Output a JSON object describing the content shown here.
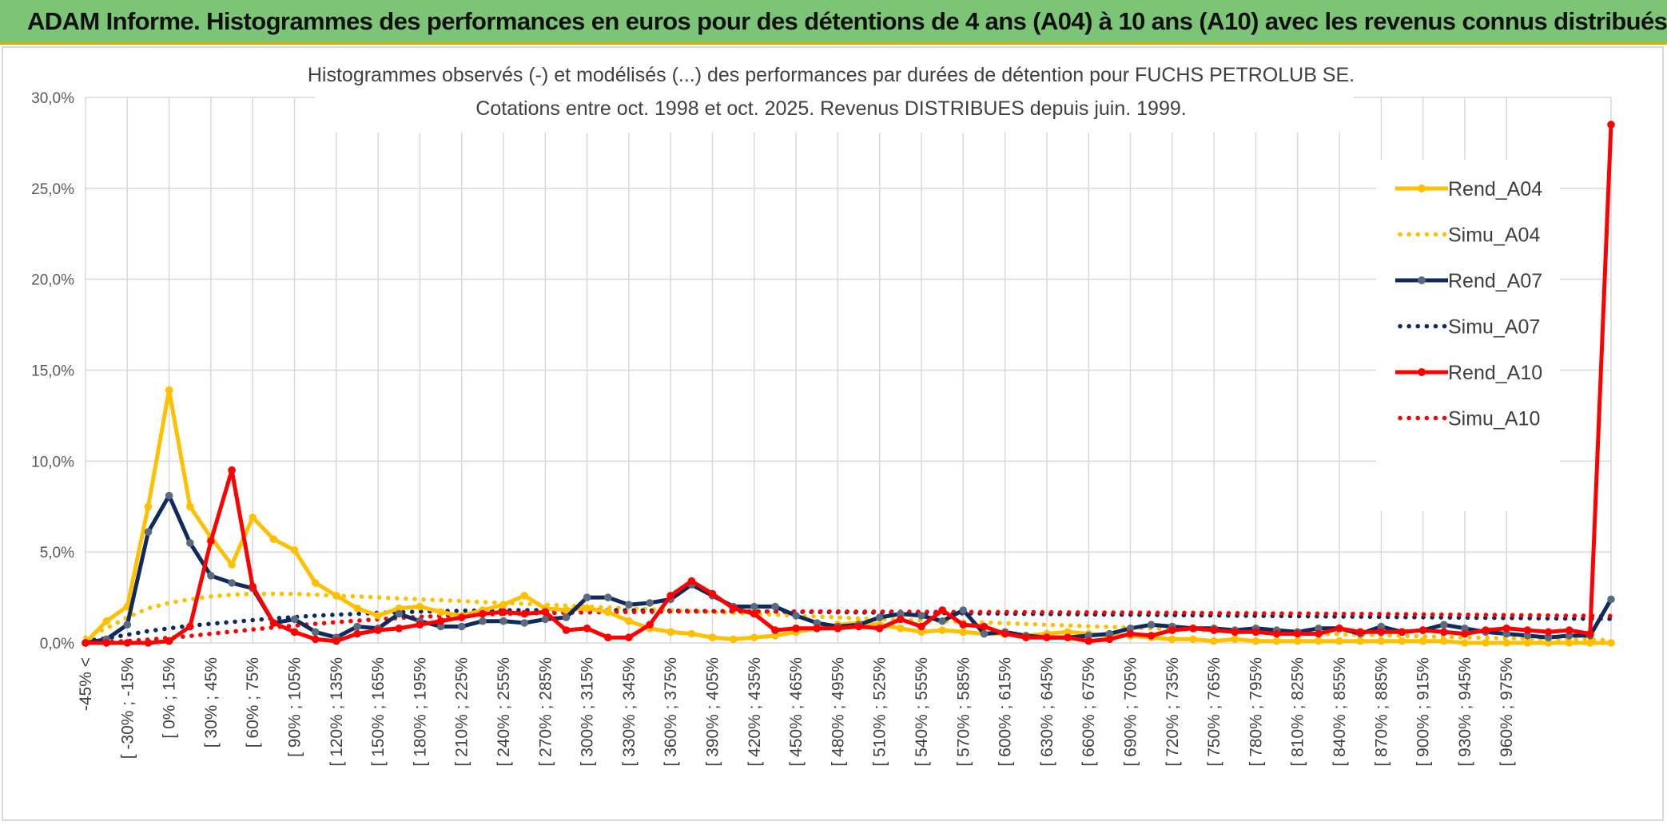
{
  "banner": {
    "title": "ADAM Informe. Histogrammes des performances en euros pour des détentions de 4 ans (A04) à 10 ans (A10) avec les revenus connus distribués"
  },
  "colors": {
    "banner_bg": "#7cc576",
    "a04": "#ffc000",
    "a07": "#0f2a5c",
    "a10": "#ff0000",
    "grid": "#d9d9d9"
  },
  "chart_data": {
    "type": "line",
    "title": "Histogrammes observés (-) et modélisés (...) des performances par durées de détention pour FUCHS PETROLUB SE.",
    "subtitle": "Cotations entre oct. 1998 et oct. 2025. Revenus DISTRIBUES depuis juin. 1999.",
    "xlabel": "",
    "ylabel": "",
    "ylim": [
      0,
      30
    ],
    "y_ticks": [
      "0,0%",
      "5,0%",
      "10,0%",
      "15,0%",
      "20,0%",
      "25,0%",
      "30,0%"
    ],
    "legend_position": "right",
    "tick_labels": [
      "-45% <",
      "[ -30% ; -15%",
      "[ 0% ; 15%",
      "[ 30% ; 45%",
      "[ 60% ; 75%",
      "[ 90% ; 105%",
      "[ 120% ; 135%",
      "[ 150% ; 165%",
      "[ 180% ; 195%",
      "[ 210% ; 225%",
      "[ 240% ; 255%",
      "[ 270% ; 285%",
      "[ 300% ; 315%",
      "[ 330% ; 345%",
      "[ 360% ; 375%",
      "[ 390% ; 405%",
      "[ 420% ; 435%",
      "[ 450% ; 465%",
      "[ 480% ; 495%",
      "[ 510% ; 525%",
      "[ 540% ; 555%",
      "[ 570% ; 585%",
      "[ 600% ; 615%",
      "[ 630% ; 645%",
      "[ 660% ; 675%",
      "[ 690% ; 705%",
      "[ 720% ; 735%",
      "[ 750% ; 765%",
      "[ 780% ; 795%",
      "[ 810% ; 825%",
      "[ 840% ; 855%",
      "[ 870% ; 885%",
      "[ 900% ; 915%",
      "[ 930% ; 945%",
      "[ 960% ; 975%"
    ],
    "series": [
      {
        "name": "Rend_A04",
        "style": "solid",
        "color": "#ffc000",
        "values": [
          0.0,
          1.2,
          2.0,
          7.5,
          13.9,
          7.5,
          5.8,
          4.3,
          6.9,
          5.7,
          5.1,
          3.3,
          2.6,
          1.9,
          1.5,
          1.9,
          2.0,
          1.7,
          1.5,
          1.8,
          2.1,
          2.6,
          1.9,
          1.8,
          1.9,
          1.7,
          1.2,
          0.8,
          0.6,
          0.5,
          0.3,
          0.2,
          0.3,
          0.4,
          0.6,
          0.8,
          1.0,
          1.1,
          1.0,
          0.8,
          0.6,
          0.7,
          0.6,
          0.5,
          0.5,
          0.4,
          0.5,
          0.6,
          0.5,
          0.4,
          0.4,
          0.3,
          0.2,
          0.2,
          0.1,
          0.2,
          0.1,
          0.1,
          0.1,
          0.1,
          0.1,
          0.1,
          0.1,
          0.1,
          0.1,
          0.1,
          0.0,
          0.0,
          0.0,
          0.0,
          0.0,
          0.0,
          0.0,
          0.0
        ]
      },
      {
        "name": "Simu_A04",
        "style": "dotted",
        "color": "#ffc000",
        "values": [
          0.3,
          0.8,
          1.4,
          1.9,
          2.2,
          2.4,
          2.55,
          2.65,
          2.7,
          2.7,
          2.7,
          2.65,
          2.6,
          2.55,
          2.5,
          2.45,
          2.4,
          2.35,
          2.3,
          2.25,
          2.2,
          2.15,
          2.1,
          2.05,
          2.0,
          1.95,
          1.9,
          1.85,
          1.8,
          1.75,
          1.7,
          1.65,
          1.6,
          1.55,
          1.5,
          1.45,
          1.4,
          1.35,
          1.3,
          1.27,
          1.24,
          1.2,
          1.16,
          1.12,
          1.08,
          1.04,
          1.0,
          0.96,
          0.92,
          0.88,
          0.84,
          0.8,
          0.76,
          0.72,
          0.68,
          0.64,
          0.6,
          0.57,
          0.54,
          0.51,
          0.48,
          0.45,
          0.42,
          0.39,
          0.36,
          0.33,
          0.3,
          0.28,
          0.26,
          0.24,
          0.22,
          0.2,
          0.18,
          0.15
        ]
      },
      {
        "name": "Rend_A07",
        "style": "solid",
        "color": "#0f2a5c",
        "values": [
          0.0,
          0.2,
          1.0,
          6.1,
          8.1,
          5.5,
          3.7,
          3.3,
          3.0,
          1.1,
          1.3,
          0.6,
          0.3,
          0.9,
          0.8,
          1.6,
          1.2,
          0.9,
          0.9,
          1.2,
          1.2,
          1.1,
          1.3,
          1.4,
          2.5,
          2.5,
          2.1,
          2.2,
          2.4,
          3.2,
          2.6,
          2.0,
          2.0,
          2.0,
          1.5,
          1.1,
          0.9,
          1.0,
          1.4,
          1.6,
          1.5,
          1.2,
          1.8,
          0.5,
          0.6,
          0.4,
          0.3,
          0.3,
          0.4,
          0.5,
          0.8,
          1.0,
          0.9,
          0.8,
          0.8,
          0.7,
          0.8,
          0.7,
          0.6,
          0.8,
          0.8,
          0.5,
          0.9,
          0.6,
          0.7,
          1.0,
          0.8,
          0.6,
          0.5,
          0.4,
          0.3,
          0.4,
          0.4,
          2.4
        ]
      },
      {
        "name": "Simu_A07",
        "style": "dotted",
        "color": "#0f2a5c",
        "values": [
          0.1,
          0.25,
          0.45,
          0.65,
          0.8,
          0.95,
          1.05,
          1.15,
          1.25,
          1.35,
          1.42,
          1.5,
          1.55,
          1.6,
          1.65,
          1.68,
          1.72,
          1.75,
          1.77,
          1.78,
          1.79,
          1.8,
          1.8,
          1.8,
          1.8,
          1.8,
          1.79,
          1.78,
          1.77,
          1.76,
          1.75,
          1.74,
          1.73,
          1.72,
          1.71,
          1.7,
          1.69,
          1.68,
          1.67,
          1.66,
          1.65,
          1.64,
          1.63,
          1.62,
          1.61,
          1.6,
          1.59,
          1.58,
          1.57,
          1.56,
          1.55,
          1.54,
          1.53,
          1.52,
          1.51,
          1.5,
          1.49,
          1.48,
          1.47,
          1.46,
          1.45,
          1.44,
          1.43,
          1.42,
          1.41,
          1.4,
          1.39,
          1.38,
          1.37,
          1.36,
          1.35,
          1.34,
          1.33,
          1.32
        ]
      },
      {
        "name": "Rend_A10",
        "style": "solid",
        "color": "#ff0000",
        "values": [
          0.0,
          0.0,
          0.0,
          0.0,
          0.1,
          0.9,
          5.6,
          9.5,
          3.1,
          1.1,
          0.6,
          0.2,
          0.1,
          0.5,
          0.7,
          0.8,
          1.0,
          1.2,
          1.4,
          1.6,
          1.7,
          1.6,
          1.7,
          0.7,
          0.8,
          0.3,
          0.3,
          1.0,
          2.6,
          3.4,
          2.7,
          1.9,
          1.6,
          0.7,
          0.8,
          0.8,
          0.8,
          0.9,
          0.8,
          1.3,
          0.9,
          1.8,
          1.0,
          0.9,
          0.5,
          0.3,
          0.3,
          0.3,
          0.1,
          0.2,
          0.5,
          0.4,
          0.7,
          0.8,
          0.7,
          0.6,
          0.6,
          0.5,
          0.5,
          0.5,
          0.8,
          0.6,
          0.6,
          0.6,
          0.7,
          0.6,
          0.5,
          0.7,
          0.8,
          0.7,
          0.6,
          0.7,
          0.5,
          28.5
        ]
      },
      {
        "name": "Simu_A10",
        "style": "dotted",
        "color": "#ff0000",
        "values": [
          0.0,
          0.05,
          0.1,
          0.18,
          0.28,
          0.38,
          0.5,
          0.62,
          0.74,
          0.85,
          0.95,
          1.05,
          1.14,
          1.22,
          1.3,
          1.37,
          1.43,
          1.48,
          1.52,
          1.56,
          1.6,
          1.62,
          1.64,
          1.66,
          1.68,
          1.69,
          1.7,
          1.71,
          1.72,
          1.72,
          1.73,
          1.73,
          1.73,
          1.73,
          1.73,
          1.73,
          1.73,
          1.72,
          1.72,
          1.72,
          1.71,
          1.71,
          1.7,
          1.7,
          1.7,
          1.69,
          1.69,
          1.68,
          1.68,
          1.67,
          1.67,
          1.66,
          1.66,
          1.65,
          1.64,
          1.64,
          1.63,
          1.62,
          1.62,
          1.61,
          1.6,
          1.6,
          1.59,
          1.58,
          1.57,
          1.56,
          1.55,
          1.54,
          1.53,
          1.52,
          1.51,
          1.5,
          1.49,
          1.48
        ]
      }
    ]
  }
}
